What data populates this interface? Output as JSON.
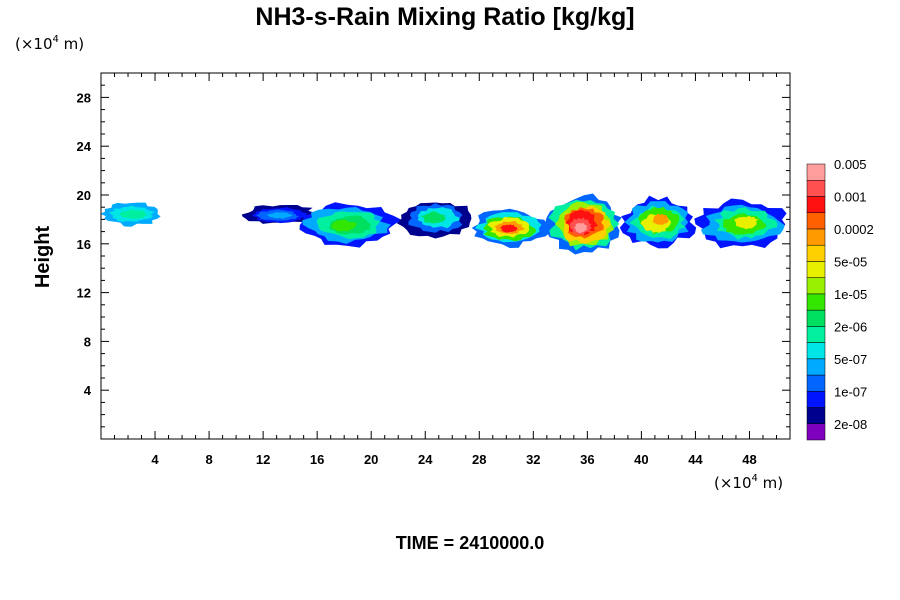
{
  "chart_data": {
    "type": "heatmap",
    "title": "NH3-s-Rain Mixing Ratio [kg/kg]",
    "ylabel": "Height",
    "xunit": {
      "prefix": "(×10",
      "exp": "4",
      "suffix": " m)"
    },
    "yunit": {
      "prefix": "(×10",
      "exp": "4",
      "suffix": " m)"
    },
    "xlim": [
      0,
      51
    ],
    "ylim": [
      0,
      30
    ],
    "xticks": [
      "4",
      "8",
      "12",
      "16",
      "20",
      "24",
      "28",
      "32",
      "36",
      "40",
      "44",
      "48"
    ],
    "yticks": [
      "4",
      "8",
      "12",
      "16",
      "20",
      "24",
      "28"
    ],
    "grid": false,
    "footer": "TIME = 2410000.0",
    "colorbar": {
      "colors": [
        "#7f00bf",
        "#00008f",
        "#0014ff",
        "#0066ff",
        "#00aaff",
        "#00e5e5",
        "#00f0a0",
        "#00e060",
        "#33e600",
        "#99f000",
        "#e8f000",
        "#ffd000",
        "#ff9a00",
        "#ff6000",
        "#ff1010",
        "#ff5050",
        "#ff9c9c"
      ],
      "labels": [
        "2e-08",
        "1e-07",
        "5e-07",
        "2e-06",
        "1e-05",
        "5e-05",
        "0.0002",
        "0.001",
        "0.005"
      ]
    },
    "field_regions": [
      {
        "x": [
          0.0,
          4.5
        ],
        "y": [
          17.5,
          19.4
        ],
        "levels": [
          4,
          5,
          6
        ]
      },
      {
        "x": [
          10.5,
          16.0
        ],
        "y": [
          17.6,
          19.2
        ],
        "levels": [
          1,
          2,
          3,
          4
        ]
      },
      {
        "x": [
          14.5,
          22.0
        ],
        "y": [
          15.8,
          19.3
        ],
        "levels": [
          2,
          4,
          6,
          7,
          8
        ]
      },
      {
        "x": [
          22.0,
          27.5
        ],
        "y": [
          16.5,
          19.6
        ],
        "levels": [
          1,
          3,
          5,
          7
        ]
      },
      {
        "x": [
          27.5,
          33.0
        ],
        "y": [
          15.8,
          18.8
        ],
        "levels": [
          3,
          5,
          8,
          10,
          12,
          14
        ]
      },
      {
        "x": [
          33.0,
          38.5
        ],
        "y": [
          15.2,
          20.0
        ],
        "levels": [
          3,
          6,
          9,
          11,
          13,
          14,
          15,
          16
        ]
      },
      {
        "x": [
          38.5,
          44.0
        ],
        "y": [
          15.8,
          19.8
        ],
        "levels": [
          2,
          4,
          6,
          8,
          10,
          12
        ]
      },
      {
        "x": [
          44.0,
          51.0
        ],
        "y": [
          15.6,
          19.6
        ],
        "levels": [
          2,
          4,
          6,
          8,
          10
        ]
      }
    ]
  }
}
